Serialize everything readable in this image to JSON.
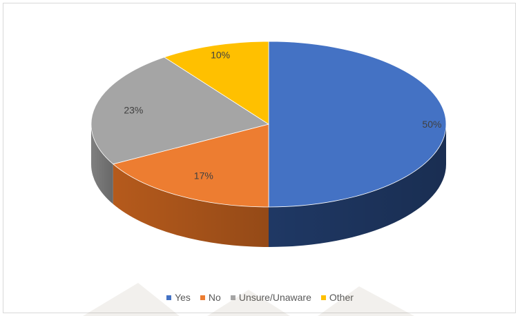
{
  "chart_data": {
    "type": "pie",
    "title": "",
    "categories": [
      "Yes",
      "No",
      "Unsure/Unaware",
      "Other"
    ],
    "values": [
      50,
      17,
      23,
      10
    ],
    "data_labels": [
      "50%",
      "17%",
      "23%",
      "10%"
    ],
    "colors": [
      "#4472C4",
      "#ED7D31",
      "#A5A5A5",
      "#FFC000"
    ],
    "side_colors": [
      "#1F3864",
      "#B55A1C",
      "#7F7F7F",
      "#C79600"
    ],
    "legend_position": "bottom",
    "style": "3d-tilted",
    "start_angle_deg": 0,
    "direction": "clockwise"
  },
  "legend": {
    "items": [
      {
        "label": "Yes",
        "color": "#4472C4"
      },
      {
        "label": "No",
        "color": "#ED7D31"
      },
      {
        "label": "Unsure/Unaware",
        "color": "#A5A5A5"
      },
      {
        "label": "Other",
        "color": "#FFC000"
      }
    ]
  }
}
